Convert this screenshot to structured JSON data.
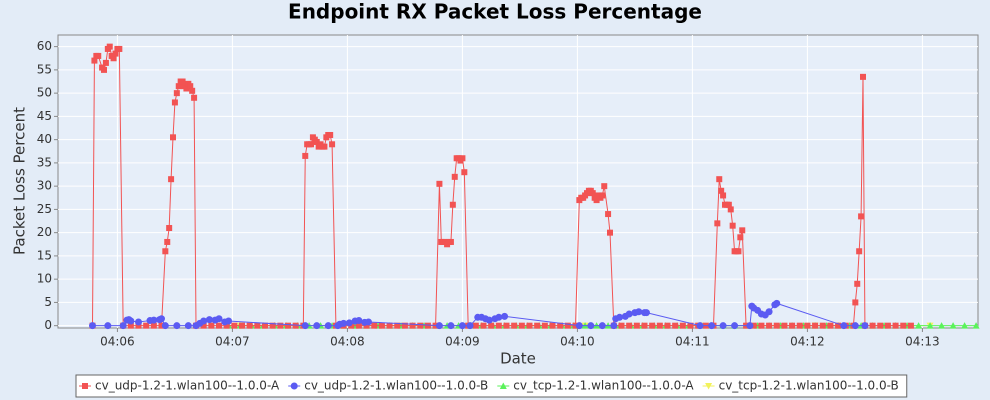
{
  "chart_data": {
    "type": "line",
    "title": "Endpoint RX Packet Loss Percentage",
    "x_label": "Date",
    "y_label": "Packet Loss Percent",
    "xlim": [
      "04:05:29",
      "04:13:29"
    ],
    "xticks": [
      "04:06",
      "04:07",
      "04:08",
      "04:09",
      "04:10",
      "04:11",
      "04:12",
      "04:13"
    ],
    "ylim": [
      -0.5,
      62.5
    ],
    "yticks": [
      0,
      5,
      10,
      15,
      20,
      25,
      30,
      35,
      40,
      45,
      50,
      55,
      60
    ],
    "grid": true,
    "legend": "bottom",
    "series": [
      {
        "name": "cv_udp-1.2-1.wlan100--1.0.0-A",
        "color": "#f25353",
        "x": [
          "04:05:47",
          "04:05:48",
          "04:05:49",
          "04:05:50",
          "04:05:52",
          "04:05:53",
          "04:05:54",
          "04:05:55",
          "04:05:56",
          "04:05:57",
          "04:05:58",
          "04:05:59",
          "04:06:00",
          "04:06:01",
          "04:06:03",
          "04:06:07",
          "04:06:11",
          "04:06:15",
          "04:06:19",
          "04:06:23",
          "04:06:25",
          "04:06:26",
          "04:06:27",
          "04:06:28",
          "04:06:29",
          "04:06:30",
          "04:06:31",
          "04:06:32",
          "04:06:33",
          "04:06:34",
          "04:06:35",
          "04:06:36",
          "04:06:37",
          "04:06:38",
          "04:06:39",
          "04:06:40",
          "04:06:41",
          "04:06:45",
          "04:06:49",
          "04:06:53",
          "04:06:57",
          "04:07:01",
          "04:07:05",
          "04:07:09",
          "04:07:13",
          "04:07:17",
          "04:07:21",
          "04:07:25",
          "04:07:29",
          "04:07:33",
          "04:07:37",
          "04:07:38",
          "04:07:39",
          "04:07:40",
          "04:07:41",
          "04:07:42",
          "04:07:43",
          "04:07:44",
          "04:07:45",
          "04:07:46",
          "04:07:47",
          "04:07:48",
          "04:07:49",
          "04:07:50",
          "04:07:51",
          "04:07:52",
          "04:07:54",
          "04:07:58",
          "04:08:02",
          "04:08:06",
          "04:08:10",
          "04:08:14",
          "04:08:18",
          "04:08:22",
          "04:08:26",
          "04:08:30",
          "04:08:34",
          "04:08:38",
          "04:08:42",
          "04:08:46",
          "04:08:48",
          "04:08:49",
          "04:08:50",
          "04:08:51",
          "04:08:52",
          "04:08:53",
          "04:08:54",
          "04:08:55",
          "04:08:56",
          "04:08:57",
          "04:08:58",
          "04:08:59",
          "04:09:00",
          "04:09:01",
          "04:09:03",
          "04:09:07",
          "04:09:11",
          "04:09:15",
          "04:09:19",
          "04:09:23",
          "04:09:27",
          "04:09:31",
          "04:09:35",
          "04:09:39",
          "04:09:43",
          "04:09:47",
          "04:09:51",
          "04:09:55",
          "04:09:59",
          "04:10:01",
          "04:10:02",
          "04:10:03",
          "04:10:04",
          "04:10:05",
          "04:10:06",
          "04:10:07",
          "04:10:08",
          "04:10:09",
          "04:10:10",
          "04:10:11",
          "04:10:12",
          "04:10:13",
          "04:10:14",
          "04:10:16",
          "04:10:17",
          "04:10:19",
          "04:10:23",
          "04:10:27",
          "04:10:31",
          "04:10:35",
          "04:10:39",
          "04:10:43",
          "04:10:47",
          "04:10:51",
          "04:10:55",
          "04:10:59",
          "04:11:03",
          "04:11:07",
          "04:11:11",
          "04:11:13",
          "04:11:14",
          "04:11:15",
          "04:11:16",
          "04:11:17",
          "04:11:18",
          "04:11:19",
          "04:11:20",
          "04:11:21",
          "04:11:22",
          "04:11:23",
          "04:11:24",
          "04:11:25",
          "04:11:26",
          "04:11:28",
          "04:11:32",
          "04:11:36",
          "04:11:40",
          "04:11:44",
          "04:11:48",
          "04:11:52",
          "04:11:56",
          "04:12:00",
          "04:12:04",
          "04:12:08",
          "04:12:12",
          "04:12:16",
          "04:12:20",
          "04:12:24",
          "04:12:25",
          "04:12:26",
          "04:12:27",
          "04:12:28",
          "04:12:29",
          "04:12:30",
          "04:12:34",
          "04:12:38",
          "04:12:42",
          "04:12:46",
          "04:12:50",
          "04:12:54"
        ],
        "values": [
          0,
          57,
          58,
          58,
          55.5,
          55,
          56.5,
          59.5,
          60,
          58,
          57.5,
          58.5,
          59.5,
          59.5,
          0,
          0,
          0,
          0,
          0,
          0,
          16,
          18,
          21,
          31.5,
          40.5,
          48,
          50,
          51.5,
          52.5,
          52.5,
          51.5,
          51,
          52,
          51.5,
          50.5,
          49,
          0,
          0,
          0,
          0,
          0,
          0,
          0,
          0,
          0,
          0,
          0,
          0,
          0,
          0,
          0,
          36.5,
          39,
          39,
          39,
          40.5,
          40,
          39.5,
          38.5,
          39,
          38.5,
          38.5,
          40.5,
          41,
          41,
          39,
          0,
          0,
          0,
          0,
          0,
          0,
          0,
          0,
          0,
          0,
          0,
          0,
          0,
          0,
          30.5,
          18,
          18,
          18,
          17.5,
          18,
          18,
          26,
          32,
          36,
          36,
          35.5,
          36,
          33,
          0,
          0,
          0,
          0,
          0,
          0,
          0,
          0,
          0,
          0,
          0,
          0,
          0,
          0,
          0,
          27,
          27.5,
          27.5,
          28,
          28.5,
          29,
          29,
          28.5,
          27.5,
          27,
          28,
          27.5,
          28,
          30,
          24,
          20,
          0,
          0,
          0,
          0,
          0,
          0,
          0,
          0,
          0,
          0,
          0,
          0,
          0,
          0,
          22,
          31.5,
          29,
          28,
          26,
          26,
          26,
          25,
          21.5,
          16,
          16,
          16,
          19,
          20.5,
          0,
          0,
          0,
          0,
          0,
          0,
          0,
          0,
          0,
          0,
          0,
          0,
          0,
          0,
          0,
          5,
          9,
          16,
          23.5,
          53.5,
          0,
          0,
          0,
          0,
          0,
          0,
          0
        ]
      },
      {
        "name": "cv_udp-1.2-1.wlan100--1.0.0-B",
        "color": "#5b5bf2",
        "x": [
          "04:05:47",
          "04:05:55",
          "04:06:03",
          "04:06:05",
          "04:06:06",
          "04:06:07",
          "04:06:11",
          "04:06:17",
          "04:06:19",
          "04:06:22",
          "04:06:23",
          "04:06:25",
          "04:06:31",
          "04:06:37",
          "04:06:41",
          "04:06:43",
          "04:06:45",
          "04:06:48",
          "04:06:51",
          "04:06:53",
          "04:06:56",
          "04:06:58",
          "04:07:38",
          "04:07:44",
          "04:07:50",
          "04:07:55",
          "04:07:56",
          "04:07:58",
          "04:08:01",
          "04:08:04",
          "04:08:06",
          "04:08:09",
          "04:08:11",
          "04:08:48",
          "04:08:54",
          "04:09:00",
          "04:09:04",
          "04:09:08",
          "04:09:10",
          "04:09:12",
          "04:09:14",
          "04:09:17",
          "04:09:19",
          "04:09:22",
          "04:10:01",
          "04:10:07",
          "04:10:13",
          "04:10:19",
          "04:10:20",
          "04:10:22",
          "04:10:25",
          "04:10:27",
          "04:10:30",
          "04:10:32",
          "04:10:35",
          "04:10:36",
          "04:11:04",
          "04:11:10",
          "04:11:16",
          "04:11:22",
          "04:11:30",
          "04:11:31",
          "04:11:32",
          "04:11:34",
          "04:11:36",
          "04:11:38",
          "04:11:40",
          "04:11:43",
          "04:11:44",
          "04:12:19",
          "04:12:25",
          "04:12:30"
        ],
        "values": [
          0,
          0,
          0,
          1.2,
          1.3,
          1,
          0.8,
          1.1,
          1.2,
          1.3,
          1.5,
          0,
          0,
          0,
          0,
          0.5,
          1,
          1.3,
          1.2,
          1.5,
          0.8,
          1.0,
          0,
          0,
          0,
          0,
          0.3,
          0.5,
          0.6,
          1,
          1.1,
          0.7,
          0.8,
          0,
          0,
          0,
          0,
          1.8,
          1.8,
          1.5,
          1.2,
          1.5,
          1.8,
          2,
          0,
          0,
          0,
          0,
          1.5,
          1.8,
          2,
          2.5,
          2.8,
          3,
          2.8,
          2.8,
          0,
          0,
          0,
          0,
          0,
          4.2,
          3.8,
          3.3,
          2.5,
          2.3,
          3,
          4.5,
          4.8,
          0,
          0,
          0
        ]
      },
      {
        "name": "cv_tcp-1.2-1.wlan100--1.0.0-A",
        "color": "#5bf25b",
        "x": [
          "04:06:58",
          "04:07:04",
          "04:07:10",
          "04:07:16",
          "04:07:22",
          "04:07:28",
          "04:07:34",
          "04:07:40",
          "04:07:46",
          "04:07:52",
          "04:07:58",
          "04:08:04",
          "04:08:10",
          "04:08:16",
          "04:08:22",
          "04:08:28",
          "04:08:34",
          "04:08:40",
          "04:08:46",
          "04:08:52",
          "04:08:58",
          "04:09:04",
          "04:09:10",
          "04:09:16",
          "04:09:22",
          "04:09:28",
          "04:09:34",
          "04:09:40",
          "04:09:46",
          "04:09:52",
          "04:09:58",
          "04:10:04",
          "04:10:10",
          "04:10:16",
          "04:10:22",
          "04:10:28",
          "04:10:34",
          "04:10:40",
          "04:10:46",
          "04:10:52",
          "04:10:58",
          "04:11:04",
          "04:11:10",
          "04:11:16",
          "04:11:22",
          "04:11:28",
          "04:11:34",
          "04:11:40",
          "04:11:46",
          "04:11:52",
          "04:11:58",
          "04:12:04",
          "04:12:10",
          "04:12:16",
          "04:12:22",
          "04:12:28",
          "04:12:34",
          "04:12:40",
          "04:12:46",
          "04:12:52",
          "04:12:58",
          "04:13:04",
          "04:13:10",
          "04:13:16",
          "04:13:22",
          "04:13:28"
        ],
        "values": [
          0,
          0,
          0,
          0,
          0,
          0,
          0,
          0,
          0,
          0,
          0,
          0,
          0,
          0,
          0,
          0,
          0,
          0,
          0,
          0,
          0,
          0,
          0,
          0,
          0,
          0,
          0,
          0,
          0,
          0,
          0,
          0,
          0,
          0,
          0,
          0,
          0,
          0,
          0,
          0,
          0,
          0,
          0,
          0,
          0,
          0,
          0,
          0,
          0,
          0,
          0,
          0,
          0,
          0,
          0,
          0,
          0,
          0,
          0,
          0,
          0,
          0,
          0,
          0,
          0,
          0
        ]
      },
      {
        "name": "cv_tcp-1.2-1.wlan100--1.0.0-B",
        "color": "#f2f25b",
        "x": [
          "04:07:04",
          "04:08:04",
          "04:09:04",
          "04:10:04",
          "04:11:04",
          "04:12:04",
          "04:13:04"
        ],
        "values": [
          0,
          0,
          0,
          0,
          0,
          0,
          0
        ]
      }
    ]
  }
}
